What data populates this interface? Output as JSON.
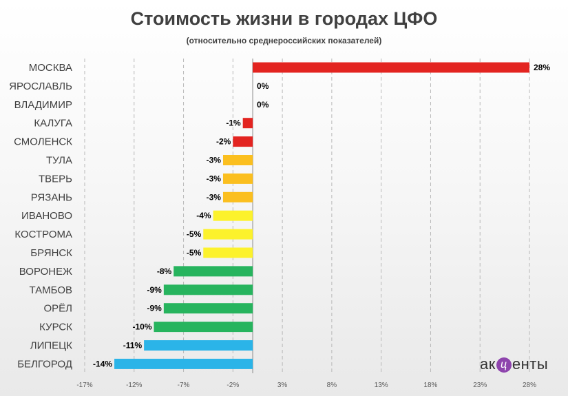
{
  "title": "Стоимость жизни в городах ЦФО",
  "subtitle": "(относительно среднероссийских показателей)",
  "logo": {
    "before": "ак",
    "mark": "ц",
    "after": "енты"
  },
  "colors": {
    "red": "#e32420",
    "orange": "#fbbf1f",
    "yellow": "#fcf22c",
    "green": "#27b45e",
    "blue": "#2bb4e8",
    "grid": "#b8b8b8",
    "axis": "#888888"
  },
  "chart_data": {
    "type": "bar",
    "orientation": "horizontal",
    "title": "Стоимость жизни в городах ЦФО",
    "subtitle": "(относительно среднероссийских показателей)",
    "categories": [
      "МОСКВА",
      "ЯРОСЛАВЛЬ",
      "ВЛАДИМИР",
      "КАЛУГА",
      "СМОЛЕНСК",
      "ТУЛА",
      "ТВЕРЬ",
      "РЯЗАНЬ",
      "ИВАНОВО",
      "КОСТРОМА",
      "БРЯНСК",
      "ВОРОНЕЖ",
      "ТАМБОВ",
      "ОРЁЛ",
      "КУРСК",
      "ЛИПЕЦК",
      "БЕЛГОРОД"
    ],
    "values": [
      28,
      0,
      0,
      -1,
      -2,
      -3,
      -3,
      -3,
      -4,
      -5,
      -5,
      -8,
      -9,
      -9,
      -10,
      -11,
      -14
    ],
    "value_labels": [
      "28%",
      "0%",
      "0%",
      "-1%",
      "-2%",
      "-3%",
      "-3%",
      "-3%",
      "-4%",
      "-5%",
      "-5%",
      "-8%",
      "-9%",
      "-9%",
      "-10%",
      "-11%",
      "-14%"
    ],
    "bar_colors": [
      "red",
      "red",
      "red",
      "red",
      "red",
      "orange",
      "orange",
      "orange",
      "yellow",
      "yellow",
      "yellow",
      "green",
      "green",
      "green",
      "green",
      "blue",
      "blue"
    ],
    "xlim": [
      -17,
      28
    ],
    "x_ticks": [
      -17,
      -12,
      -7,
      -2,
      3,
      8,
      13,
      18,
      23,
      28
    ],
    "x_tick_labels": [
      "-17%",
      "-12%",
      "-7%",
      "-2%",
      "3%",
      "8%",
      "13%",
      "18%",
      "23%",
      "28%"
    ],
    "grid": "vertical dashed",
    "legend": "none"
  }
}
